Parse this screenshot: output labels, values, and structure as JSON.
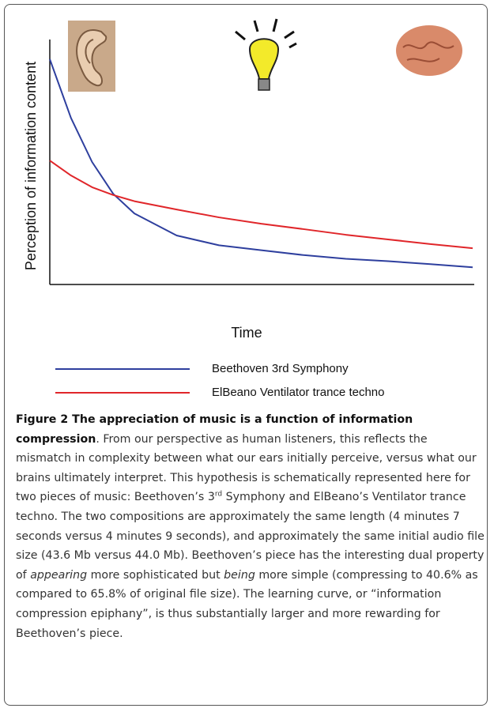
{
  "chart_data": {
    "type": "line",
    "x_label": "Time",
    "y_label": "Perception of information content",
    "x": [
      0,
      5,
      10,
      15,
      20,
      30,
      40,
      50,
      60,
      70,
      80,
      90,
      100
    ],
    "xlim": [
      0,
      100
    ],
    "ylim": [
      0,
      100
    ],
    "series": [
      {
        "name": "Beethoven 3rd Symphony",
        "color": "#2e3f9e",
        "values": [
          92,
          68,
          50,
          37,
          29,
          20,
          16,
          14,
          12,
          10.5,
          9.5,
          8.3,
          7
        ]
      },
      {
        "name": "ElBeano Ventilator trance techno",
        "color": "#e0262a",
        "values": [
          50.6,
          44.5,
          39.7,
          36.5,
          34,
          30.6,
          27.4,
          24.8,
          22.6,
          20.3,
          18.4,
          16.5,
          14.8
        ]
      }
    ]
  },
  "caption": {
    "segments": [
      {
        "text": "Figure 2 The appreciation of music is a function of information compression",
        "style": "bold"
      },
      {
        "text": ". From our perspective as human listeners, this reflects the mismatch in complexity between what our ears initially perceive, versus what our brains ultimately interpret. This hypothesis is schematically represented here for two pieces of music: Beethoven’s 3",
        "style": "normal"
      },
      {
        "text": "rd",
        "style": "sup"
      },
      {
        "text": " Symphony and ElBeano’s Ventilator trance techno. The two compositions are approximately the same length (4 minutes 7 seconds versus 4 minutes 9 seconds), and approximately the same initial audio file size (43.6 Mb versus 44.0 Mb). Beethoven’s piece has the interesting dual property of ",
        "style": "normal"
      },
      {
        "text": "appearing",
        "style": "italic"
      },
      {
        "text": " more sophisticated but ",
        "style": "normal"
      },
      {
        "text": "being",
        "style": "italic"
      },
      {
        "text": " more simple (compressing to 40.6% as compared to 65.8% of original file size). The learning curve, or “information compression epiphany”, is thus substantially larger and more rewarding for Beethoven’s piece.",
        "style": "normal"
      }
    ]
  }
}
